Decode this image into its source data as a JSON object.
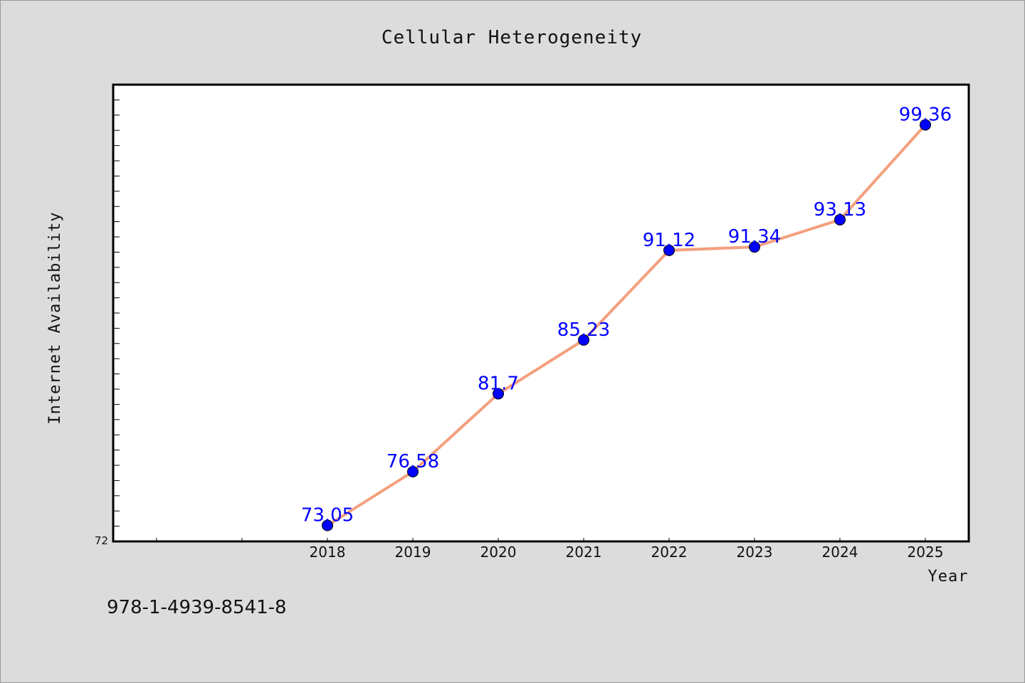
{
  "chart_data": {
    "type": "line",
    "title": "Cellular Heterogeneity",
    "xlabel": "Year",
    "ylabel": "Internet Availability",
    "categories": [
      "2018",
      "2019",
      "2020",
      "2021",
      "2022",
      "2023",
      "2024",
      "2025"
    ],
    "values": [
      73.05,
      76.58,
      81.7,
      85.23,
      91.12,
      91.34,
      93.13,
      99.36
    ],
    "data_labels": [
      "73.05",
      "76.58",
      "81.7",
      "85.23",
      "91.12",
      "91.34",
      "93.13",
      "99.36"
    ],
    "ylim": [
      72,
      102
    ],
    "y_min_label": "72",
    "grid": false,
    "legend": "none",
    "colors": {
      "line": "#f4a07e",
      "marker": "#0000ff",
      "data_label": "#0000ff",
      "plot_background": "#ffffff",
      "page_background": "#dcdcdc"
    }
  },
  "footer": {
    "isbn": "978-1-4939-8541-8"
  }
}
